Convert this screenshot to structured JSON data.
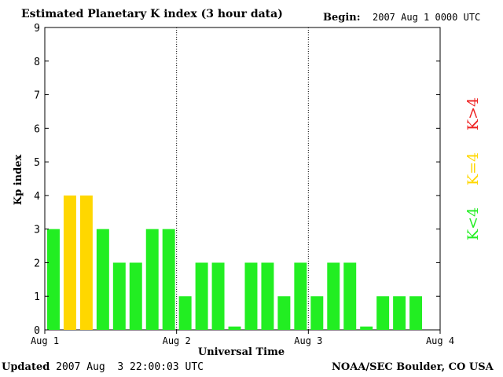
{
  "header": {
    "title": "Estimated Planetary K index (3 hour data)",
    "begin_label": "Begin:",
    "begin_value": "2007 Aug 1 0000 UTC"
  },
  "footer": {
    "updated_label": "Updated",
    "updated_value": "2007 Aug  3 22:00:03 UTC",
    "source": "NOAA/SEC Boulder, CO USA"
  },
  "chart_data": {
    "type": "bar",
    "title": "Estimated Planetary K index (3 hour data)",
    "xlabel": "Universal Time",
    "ylabel": "Kp index",
    "ylim": [
      0,
      9
    ],
    "yticks": [
      0,
      1,
      2,
      3,
      4,
      5,
      6,
      7,
      8,
      9
    ],
    "x_tick_labels": [
      "Aug 1",
      "Aug 2",
      "Aug 3",
      "Aug 4"
    ],
    "day_separators": true,
    "slots_per_day": 8,
    "values": [
      3,
      4,
      4,
      3,
      2,
      2,
      3,
      3,
      1,
      2,
      2,
      0.1,
      2,
      2,
      1,
      2,
      1,
      2,
      2,
      0.1,
      1,
      1,
      1
    ],
    "legend": [
      {
        "label": "K<4",
        "color": "#22ee22"
      },
      {
        "label": "K=4",
        "color": "#ffd700"
      },
      {
        "label": "K>4",
        "color": "#ee2222"
      }
    ],
    "colors": {
      "low": "#22ee22",
      "equal": "#ffd700",
      "high": "#ee2222"
    }
  }
}
